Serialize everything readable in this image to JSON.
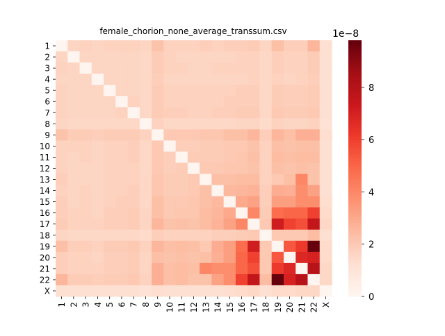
{
  "chart_data": {
    "type": "heatmap",
    "title": "female_chorion_none_average_transsum.csv",
    "row_labels": [
      "1",
      "2",
      "3",
      "4",
      "5",
      "6",
      "7",
      "8",
      "9",
      "10",
      "11",
      "12",
      "13",
      "14",
      "15",
      "16",
      "17",
      "18",
      "19",
      "20",
      "21",
      "22",
      "X"
    ],
    "col_labels": [
      "1",
      "2",
      "3",
      "4",
      "5",
      "6",
      "7",
      "8",
      "9",
      "10",
      "11",
      "12",
      "13",
      "14",
      "15",
      "16",
      "17",
      "18",
      "19",
      "20",
      "21",
      "22",
      "X"
    ],
    "values": [
      [
        0,
        1.6,
        1.7,
        1.6,
        1.7,
        1.7,
        1.7,
        1.6,
        2.2,
        1.7,
        1.7,
        1.7,
        1.8,
        1.7,
        1.8,
        1.8,
        1.9,
        1.6,
        2.3,
        1.8,
        1.8,
        2.6,
        1.2
      ],
      [
        1.6,
        0,
        1.6,
        1.6,
        1.6,
        1.6,
        1.6,
        1.5,
        1.9,
        1.7,
        1.6,
        1.6,
        1.6,
        1.6,
        1.6,
        1.7,
        1.7,
        1.5,
        1.8,
        1.7,
        1.7,
        1.9,
        1.2
      ],
      [
        1.7,
        1.6,
        0,
        1.6,
        1.6,
        1.6,
        1.6,
        1.5,
        1.9,
        1.7,
        1.7,
        1.6,
        1.6,
        1.7,
        1.7,
        1.7,
        1.7,
        1.5,
        1.8,
        1.7,
        1.7,
        1.9,
        1.2
      ],
      [
        1.6,
        1.6,
        1.6,
        0,
        1.6,
        1.6,
        1.6,
        1.5,
        1.8,
        1.6,
        1.6,
        1.6,
        1.6,
        1.6,
        1.6,
        1.6,
        1.7,
        1.5,
        1.7,
        1.6,
        1.7,
        1.8,
        1.2
      ],
      [
        1.7,
        1.6,
        1.6,
        1.6,
        0,
        1.6,
        1.6,
        1.5,
        1.9,
        1.7,
        1.7,
        1.7,
        1.7,
        1.7,
        1.7,
        1.8,
        1.8,
        1.5,
        1.9,
        1.8,
        1.8,
        1.9,
        1.2
      ],
      [
        1.7,
        1.6,
        1.6,
        1.6,
        1.6,
        0,
        1.7,
        1.5,
        1.9,
        1.7,
        1.7,
        1.7,
        1.7,
        1.7,
        1.8,
        1.8,
        1.8,
        1.5,
        1.9,
        1.8,
        1.8,
        1.9,
        1.2
      ],
      [
        1.7,
        1.6,
        1.6,
        1.6,
        1.6,
        1.7,
        0,
        1.5,
        1.9,
        1.8,
        1.8,
        1.7,
        1.7,
        1.8,
        1.8,
        1.9,
        1.9,
        1.5,
        2.0,
        1.9,
        1.9,
        2.0,
        1.2
      ],
      [
        1.6,
        1.5,
        1.5,
        1.5,
        1.5,
        1.5,
        1.5,
        0,
        1.7,
        1.5,
        1.5,
        1.5,
        1.5,
        1.5,
        1.5,
        1.6,
        1.6,
        1.4,
        1.7,
        1.6,
        1.6,
        1.7,
        1.1
      ],
      [
        2.2,
        1.9,
        1.9,
        1.8,
        1.9,
        1.9,
        1.9,
        1.7,
        0,
        2.0,
        2.0,
        2.0,
        2.1,
        2.1,
        2.3,
        2.3,
        2.6,
        1.8,
        2.6,
        2.3,
        2.8,
        2.8,
        1.3
      ],
      [
        1.7,
        1.7,
        1.7,
        1.6,
        1.7,
        1.7,
        1.8,
        1.5,
        2.0,
        0,
        1.8,
        1.8,
        1.9,
        1.9,
        2.0,
        2.0,
        2.2,
        1.7,
        2.3,
        2.2,
        2.3,
        2.3,
        1.2
      ],
      [
        1.7,
        1.6,
        1.7,
        1.6,
        1.7,
        1.7,
        1.8,
        1.5,
        2.0,
        1.8,
        0,
        1.9,
        1.9,
        1.9,
        2.0,
        2.1,
        2.3,
        1.7,
        2.4,
        2.3,
        2.4,
        2.4,
        1.2
      ],
      [
        1.7,
        1.6,
        1.6,
        1.6,
        1.7,
        1.7,
        1.7,
        1.5,
        2.0,
        1.8,
        1.9,
        0,
        2.0,
        2.0,
        2.1,
        2.1,
        2.2,
        1.7,
        2.3,
        2.2,
        2.3,
        2.2,
        1.2
      ],
      [
        1.8,
        1.6,
        1.6,
        1.6,
        1.7,
        1.7,
        1.7,
        1.5,
        2.1,
        1.9,
        1.9,
        2.0,
        0,
        2.3,
        2.3,
        2.4,
        2.4,
        1.7,
        2.0,
        2.3,
        4.0,
        2.2,
        1.2
      ],
      [
        1.7,
        1.6,
        1.7,
        1.6,
        1.7,
        1.7,
        1.8,
        1.5,
        2.1,
        1.9,
        1.9,
        2.0,
        2.3,
        0,
        2.5,
        2.6,
        2.7,
        1.8,
        2.9,
        2.8,
        3.8,
        3.2,
        1.2
      ],
      [
        1.8,
        1.6,
        1.7,
        1.6,
        1.7,
        1.8,
        1.8,
        1.5,
        2.3,
        2.0,
        2.0,
        2.1,
        2.3,
        2.5,
        0,
        3.0,
        3.2,
        1.8,
        3.3,
        3.3,
        3.8,
        3.8,
        1.3
      ],
      [
        1.8,
        1.7,
        1.7,
        1.6,
        1.8,
        1.8,
        1.9,
        1.6,
        2.3,
        2.0,
        2.1,
        2.1,
        2.4,
        2.6,
        3.0,
        0,
        4.0,
        1.9,
        4.8,
        5.0,
        5.0,
        6.0,
        1.4
      ],
      [
        1.9,
        1.7,
        1.7,
        1.7,
        1.8,
        1.8,
        1.9,
        1.6,
        2.6,
        2.2,
        2.3,
        2.2,
        2.4,
        2.7,
        3.2,
        4.0,
        0,
        2.0,
        7.2,
        6.0,
        5.6,
        7.6,
        1.5
      ],
      [
        1.6,
        1.5,
        1.5,
        1.5,
        1.5,
        1.5,
        1.5,
        1.4,
        1.8,
        1.7,
        1.7,
        1.7,
        1.7,
        1.8,
        1.8,
        1.9,
        2.0,
        0,
        2.0,
        2.0,
        2.0,
        2.4,
        1.2
      ],
      [
        2.3,
        1.8,
        1.8,
        1.7,
        1.9,
        1.9,
        2.0,
        1.7,
        2.6,
        2.3,
        2.4,
        2.3,
        2.0,
        2.9,
        3.3,
        4.8,
        7.2,
        2.0,
        0,
        5.4,
        6.2,
        9.8,
        1.4
      ],
      [
        1.8,
        1.7,
        1.7,
        1.6,
        1.8,
        1.8,
        1.9,
        1.6,
        2.3,
        2.2,
        2.3,
        2.2,
        2.3,
        2.8,
        3.3,
        5.0,
        6.0,
        2.0,
        5.4,
        0,
        6.8,
        7.0,
        1.4
      ],
      [
        1.8,
        1.7,
        1.7,
        1.7,
        1.8,
        1.8,
        1.9,
        1.6,
        2.8,
        2.3,
        2.4,
        2.3,
        4.0,
        3.8,
        3.8,
        5.0,
        5.6,
        2.0,
        6.2,
        6.8,
        0,
        8.0,
        1.5
      ],
      [
        2.6,
        1.9,
        1.9,
        1.8,
        1.9,
        1.9,
        2.0,
        1.7,
        2.8,
        2.3,
        2.4,
        2.2,
        2.2,
        3.2,
        3.8,
        6.0,
        7.6,
        2.4,
        9.8,
        7.0,
        8.0,
        0,
        1.5
      ],
      [
        1.2,
        1.2,
        1.2,
        1.2,
        1.2,
        1.2,
        1.2,
        1.1,
        1.3,
        1.2,
        1.2,
        1.2,
        1.2,
        1.2,
        1.3,
        1.4,
        1.5,
        1.2,
        1.4,
        1.4,
        1.5,
        1.5,
        0
      ]
    ],
    "value_scale": "1e-8",
    "colorbar": {
      "exponent_label": "1e−8",
      "ticks": [
        "0",
        "2",
        "4",
        "6",
        "8"
      ],
      "tick_values": [
        0,
        2,
        4,
        6,
        8
      ],
      "range": [
        0,
        9.8
      ]
    },
    "colormap": "Reds",
    "grid": false,
    "legend": "colorbar-right"
  }
}
